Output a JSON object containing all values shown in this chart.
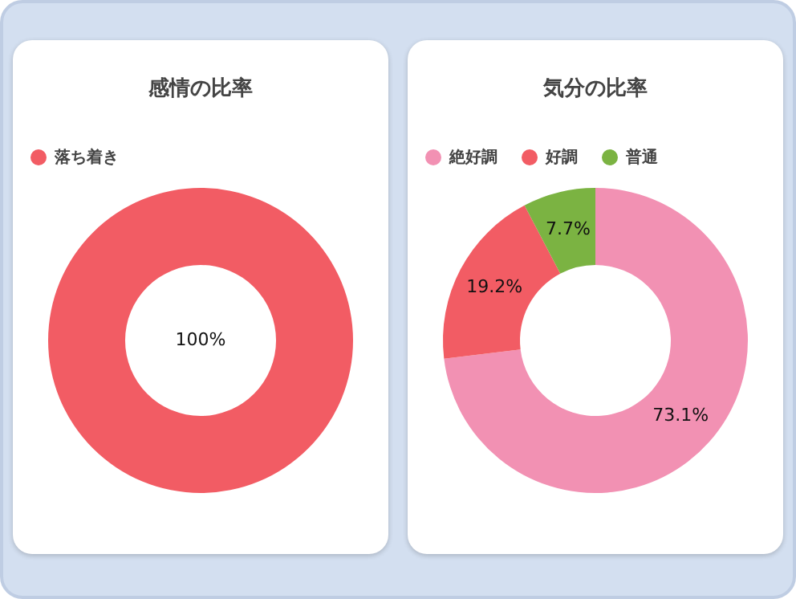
{
  "chart_data": [
    {
      "type": "donut",
      "title": "感情の比率",
      "categories": [
        "落ち着き"
      ],
      "values": [
        100
      ],
      "colors": [
        "#f25c64"
      ],
      "value_labels": [
        "100%"
      ],
      "legend": "top"
    },
    {
      "type": "donut",
      "title": "気分の比率",
      "categories": [
        "絶好調",
        "好調",
        "普通"
      ],
      "values": [
        73.1,
        19.2,
        7.7
      ],
      "colors": [
        "#f291b3",
        "#f25c64",
        "#7bb342"
      ],
      "value_labels": [
        "73.1%",
        "19.2%",
        "7.7%"
      ],
      "legend": "top"
    }
  ]
}
